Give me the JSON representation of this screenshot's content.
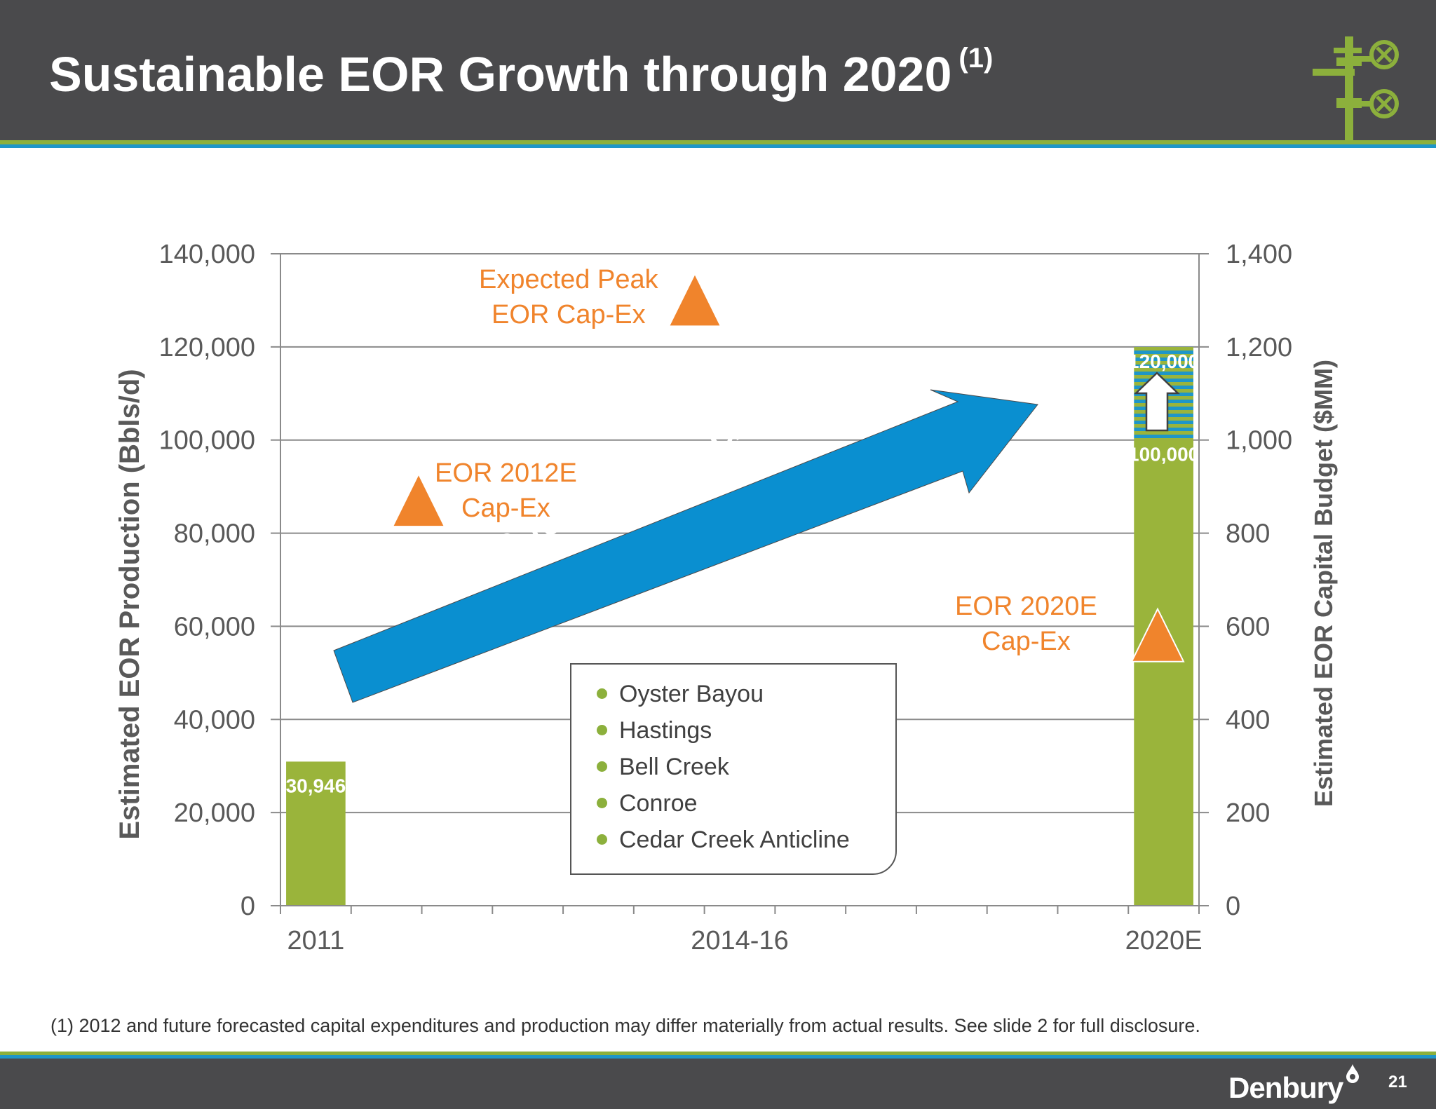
{
  "title": "Sustainable EOR Growth through 2020",
  "title_ref": "(1)",
  "footnote": "(1)  2012 and future forecasted capital expenditures and production may differ materially from actual results.  See slide 2 for full disclosure.",
  "brand": "Denbury",
  "page_number": "21",
  "colors": {
    "bar": "#9ab43b",
    "accent": "#f0842c",
    "arrow": "#0a8fd0",
    "stripe_green": "#8cb03c",
    "stripe_blue": "#1e96c8",
    "header": "#4a4a4c"
  },
  "annotations": {
    "cagr": "13-15% Average CAGR",
    "peak_line1": "Expected Peak",
    "peak_line2": "EOR Cap-Ex",
    "capex2012_line1": "EOR 2012E",
    "capex2012_line2": "Cap-Ex",
    "capex2020_line1": "EOR 2020E",
    "capex2020_line2": "Cap-Ex"
  },
  "legend": [
    "Oyster Bayou",
    "Hastings",
    "Bell Creek",
    "Conroe",
    "Cedar Creek Anticline"
  ],
  "chart_data": {
    "type": "bar",
    "categories": [
      "2011",
      "2014-16",
      "2020E"
    ],
    "series": [
      {
        "values": [
          30946,
          null,
          100000
        ]
      },
      {
        "values": [
          null,
          null,
          20000
        ]
      }
    ],
    "data_labels": [
      "30,946",
      "100,000",
      "120,000"
    ],
    "ylabel": "Estimated EOR Production (Bbls/d)",
    "y2label": "Estimated EOR Capital Budget ($MM)",
    "ylim": [
      0,
      140000
    ],
    "y2lim": [
      0,
      1400
    ],
    "yticks": [
      "0",
      "20,000",
      "40,000",
      "60,000",
      "80,000",
      "100,000",
      "120,000",
      "140,000"
    ],
    "y2ticks": [
      "0",
      "200",
      "400",
      "600",
      "800",
      "1,000",
      "1,200",
      "1,400"
    ],
    "capex_markers": [
      {
        "label": "EOR 2012E Cap-Ex",
        "y2": 870
      },
      {
        "label": "Expected Peak EOR Cap-Ex",
        "y2": 1300
      },
      {
        "label": "EOR 2020E Cap-Ex",
        "y2": 580
      }
    ],
    "grid": true
  }
}
